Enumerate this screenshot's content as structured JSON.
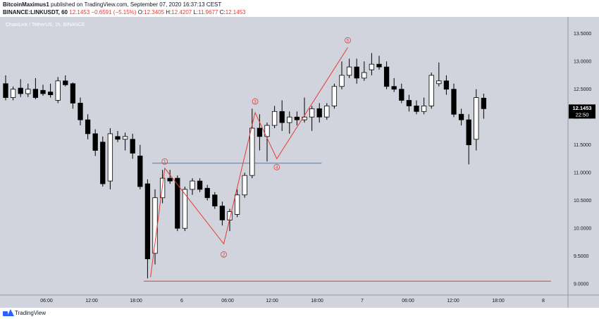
{
  "header": {
    "publisher": "BitcoinMaximus1",
    "published_text": "published on TradingView.com, September 07, 2020 16:37:13 CEST",
    "symbol": "BINANCE:LINKUSDT, 60",
    "last_price": "12.1453",
    "change": "−0.6591 (−5.15%)",
    "open_label": "O:",
    "open": "12.3405",
    "high_label": "H:",
    "high": "12.4207",
    "low_label": "L:",
    "low": "11.9677",
    "close_label": "C:",
    "close": "12.1453"
  },
  "chart_label": "ChainLink / TetherUS, 1h, BINANCE",
  "price_tag": {
    "value": "12.1453",
    "countdown": "22:50"
  },
  "footer": {
    "brand": "TradingView"
  },
  "colors": {
    "background": "#d1d4dc",
    "bull_body": "#ffffff",
    "bear_body": "#000000",
    "wave_line": "#e53935",
    "level_line": "#3d7fd4",
    "support_line": "#e53935"
  },
  "chart_data": {
    "type": "candlestick",
    "ylim": [
      8.8,
      13.8
    ],
    "y_ticks": [
      "13.5000",
      "13.0000",
      "12.5000",
      "12.0000",
      "11.5000",
      "11.0000",
      "10.5000",
      "10.0000",
      "9.5000",
      "9.0000"
    ],
    "x_ticks": [
      "06:00",
      "12:00",
      "18:00",
      "6",
      "06:00",
      "12:00",
      "18:00",
      "7",
      "06:00",
      "12:00",
      "18:00",
      "8"
    ],
    "candles": [
      {
        "o": 12.6,
        "h": 12.75,
        "l": 12.3,
        "c": 12.35
      },
      {
        "o": 12.35,
        "h": 12.55,
        "l": 12.3,
        "c": 12.5
      },
      {
        "o": 12.52,
        "h": 12.68,
        "l": 12.36,
        "c": 12.42
      },
      {
        "o": 12.42,
        "h": 12.6,
        "l": 12.36,
        "c": 12.5
      },
      {
        "o": 12.5,
        "h": 12.7,
        "l": 12.32,
        "c": 12.35
      },
      {
        "o": 12.48,
        "h": 12.58,
        "l": 12.38,
        "c": 12.42
      },
      {
        "o": 12.45,
        "h": 12.6,
        "l": 12.35,
        "c": 12.4
      },
      {
        "o": 12.3,
        "h": 12.72,
        "l": 12.25,
        "c": 12.65
      },
      {
        "o": 12.65,
        "h": 12.75,
        "l": 12.55,
        "c": 12.58
      },
      {
        "o": 12.6,
        "h": 12.62,
        "l": 12.15,
        "c": 12.25
      },
      {
        "o": 12.25,
        "h": 12.35,
        "l": 11.85,
        "c": 11.95
      },
      {
        "o": 11.95,
        "h": 12.05,
        "l": 11.6,
        "c": 11.7
      },
      {
        "o": 11.7,
        "h": 11.78,
        "l": 11.3,
        "c": 11.4
      },
      {
        "o": 11.55,
        "h": 11.65,
        "l": 10.75,
        "c": 10.8
      },
      {
        "o": 10.85,
        "h": 11.8,
        "l": 10.7,
        "c": 11.7
      },
      {
        "o": 11.65,
        "h": 11.75,
        "l": 11.55,
        "c": 11.6
      },
      {
        "o": 11.6,
        "h": 11.72,
        "l": 11.4,
        "c": 11.65
      },
      {
        "o": 11.6,
        "h": 11.7,
        "l": 11.25,
        "c": 11.35
      },
      {
        "o": 11.3,
        "h": 11.5,
        "l": 10.7,
        "c": 10.75
      },
      {
        "o": 10.8,
        "h": 10.88,
        "l": 9.1,
        "c": 9.45
      },
      {
        "o": 9.55,
        "h": 10.7,
        "l": 9.35,
        "c": 10.55
      },
      {
        "o": 10.55,
        "h": 11.05,
        "l": 10.45,
        "c": 10.9
      },
      {
        "o": 10.9,
        "h": 11.05,
        "l": 10.8,
        "c": 10.85
      },
      {
        "o": 10.9,
        "h": 10.95,
        "l": 9.95,
        "c": 10.0
      },
      {
        "o": 10.0,
        "h": 10.75,
        "l": 9.95,
        "c": 10.7
      },
      {
        "o": 10.7,
        "h": 10.9,
        "l": 10.6,
        "c": 10.85
      },
      {
        "o": 10.85,
        "h": 10.9,
        "l": 10.65,
        "c": 10.7
      },
      {
        "o": 10.72,
        "h": 10.78,
        "l": 10.5,
        "c": 10.55
      },
      {
        "o": 10.6,
        "h": 10.65,
        "l": 10.35,
        "c": 10.4
      },
      {
        "o": 10.4,
        "h": 10.48,
        "l": 10.05,
        "c": 10.15
      },
      {
        "o": 10.15,
        "h": 10.35,
        "l": 9.95,
        "c": 10.3
      },
      {
        "o": 10.25,
        "h": 10.7,
        "l": 10.2,
        "c": 10.6
      },
      {
        "o": 10.6,
        "h": 11.0,
        "l": 10.55,
        "c": 10.95
      },
      {
        "o": 10.95,
        "h": 12.15,
        "l": 10.9,
        "c": 11.8
      },
      {
        "o": 11.8,
        "h": 12.05,
        "l": 11.4,
        "c": 11.65
      },
      {
        "o": 11.65,
        "h": 11.9,
        "l": 11.2,
        "c": 11.85
      },
      {
        "o": 11.85,
        "h": 12.2,
        "l": 11.8,
        "c": 12.1
      },
      {
        "o": 12.1,
        "h": 12.3,
        "l": 11.75,
        "c": 11.9
      },
      {
        "o": 11.9,
        "h": 12.1,
        "l": 11.7,
        "c": 12.0
      },
      {
        "o": 12.0,
        "h": 12.1,
        "l": 11.85,
        "c": 11.95
      },
      {
        "o": 11.95,
        "h": 12.35,
        "l": 11.9,
        "c": 12.0
      },
      {
        "o": 12.0,
        "h": 12.2,
        "l": 11.75,
        "c": 12.15
      },
      {
        "o": 12.15,
        "h": 12.25,
        "l": 11.9,
        "c": 12.0
      },
      {
        "o": 12.0,
        "h": 12.25,
        "l": 11.95,
        "c": 12.2
      },
      {
        "o": 12.2,
        "h": 12.6,
        "l": 12.15,
        "c": 12.55
      },
      {
        "o": 12.55,
        "h": 13.0,
        "l": 12.5,
        "c": 12.75
      },
      {
        "o": 12.75,
        "h": 13.05,
        "l": 12.7,
        "c": 12.9
      },
      {
        "o": 12.9,
        "h": 13.05,
        "l": 12.6,
        "c": 12.7
      },
      {
        "o": 12.7,
        "h": 13.0,
        "l": 12.65,
        "c": 12.8
      },
      {
        "o": 12.85,
        "h": 13.15,
        "l": 12.75,
        "c": 12.95
      },
      {
        "o": 12.95,
        "h": 13.1,
        "l": 12.85,
        "c": 12.9
      },
      {
        "o": 12.9,
        "h": 13.0,
        "l": 12.5,
        "c": 12.55
      },
      {
        "o": 12.55,
        "h": 12.7,
        "l": 12.45,
        "c": 12.5
      },
      {
        "o": 12.5,
        "h": 12.6,
        "l": 12.25,
        "c": 12.3
      },
      {
        "o": 12.3,
        "h": 12.4,
        "l": 12.1,
        "c": 12.2
      },
      {
        "o": 12.2,
        "h": 12.3,
        "l": 12.05,
        "c": 12.1
      },
      {
        "o": 12.1,
        "h": 12.35,
        "l": 12.05,
        "c": 12.2
      },
      {
        "o": 12.2,
        "h": 12.8,
        "l": 12.15,
        "c": 12.75
      },
      {
        "o": 12.6,
        "h": 12.98,
        "l": 12.55,
        "c": 12.65
      },
      {
        "o": 12.65,
        "h": 12.75,
        "l": 12.4,
        "c": 12.5
      },
      {
        "o": 12.5,
        "h": 12.6,
        "l": 12.0,
        "c": 12.05
      },
      {
        "o": 12.05,
        "h": 12.15,
        "l": 11.85,
        "c": 11.95
      },
      {
        "o": 11.95,
        "h": 12.05,
        "l": 11.15,
        "c": 11.5
      },
      {
        "o": 11.6,
        "h": 12.5,
        "l": 11.4,
        "c": 12.35
      },
      {
        "o": 12.34,
        "h": 12.42,
        "l": 11.97,
        "c": 12.15
      }
    ],
    "wave_points": [
      {
        "label": "",
        "i": 19.4,
        "v": 9.12
      },
      {
        "label": "1",
        "i": 21.3,
        "v": 11.08
      },
      {
        "label": "2",
        "i": 29.2,
        "v": 9.72
      },
      {
        "label": "3",
        "i": 33.4,
        "v": 12.08
      },
      {
        "label": "4",
        "i": 36.3,
        "v": 11.25
      },
      {
        "label": "5",
        "i": 45.8,
        "v": 13.25
      }
    ],
    "label_points": [
      {
        "label": "1",
        "i": 21.3,
        "v": 11.2
      },
      {
        "label": "2",
        "i": 29.2,
        "v": 9.53
      },
      {
        "label": "3",
        "i": 33.4,
        "v": 12.28
      },
      {
        "label": "4",
        "i": 36.3,
        "v": 11.1
      },
      {
        "label": "5",
        "i": 45.8,
        "v": 13.38
      }
    ],
    "horizontal_levels": [
      {
        "v": 11.17,
        "from_i": 19.6,
        "to_i": 42.3,
        "color": "level"
      },
      {
        "v": 9.05,
        "from_i": 18.5,
        "to_i": 73.0,
        "color": "support"
      }
    ]
  }
}
